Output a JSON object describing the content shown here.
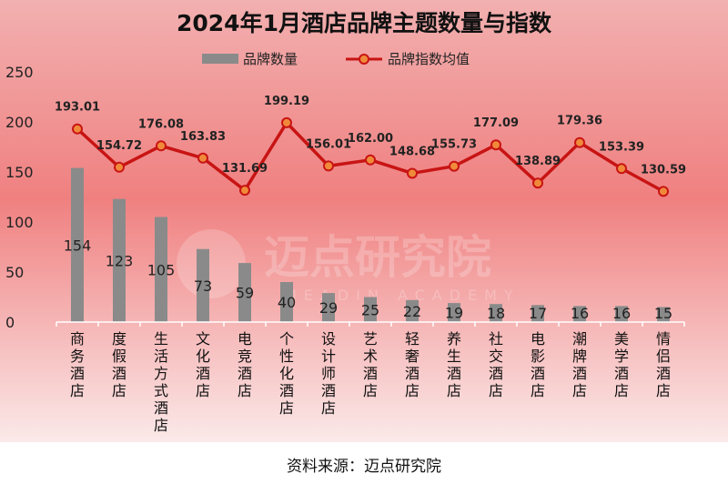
{
  "title": "2024年1月酒店品牌主题数量与指数",
  "source": "资料来源：迈点研究院",
  "watermark": {
    "main": "迈点研究院",
    "sub": "MEADIN ACADEMY"
  },
  "colors": {
    "bar": "#8a8a8a",
    "line": "#c81414",
    "marker_fill": "#f08a3a",
    "bg_top": "#f2b0b0",
    "bg_mid": "#f08080",
    "bg_bottom": "#fbe9e9"
  },
  "chart_data": {
    "type": "bar+line",
    "categories": [
      "商务酒店",
      "度假酒店",
      "生活方式酒店",
      "文化酒店",
      "电竞酒店",
      "个性化酒店",
      "设计师酒店",
      "艺术酒店",
      "轻奢酒店",
      "养生酒店",
      "社交酒店",
      "电影酒店",
      "潮牌酒店",
      "美学酒店",
      "情侣酒店"
    ],
    "series": [
      {
        "name": "品牌数量",
        "type": "bar",
        "values": [
          154,
          123,
          105,
          73,
          59,
          40,
          29,
          25,
          22,
          19,
          18,
          17,
          16,
          16,
          15
        ]
      },
      {
        "name": "品牌指数均值",
        "type": "line",
        "values": [
          193.01,
          154.72,
          176.08,
          163.83,
          131.69,
          199.19,
          156.01,
          162.0,
          148.68,
          155.73,
          177.09,
          138.89,
          179.36,
          153.39,
          130.59
        ]
      }
    ],
    "yticks": [
      "0",
      "50",
      "100",
      "150",
      "200",
      "250"
    ],
    "ylim": [
      0,
      250
    ],
    "grid": false,
    "legend_position": "top"
  }
}
